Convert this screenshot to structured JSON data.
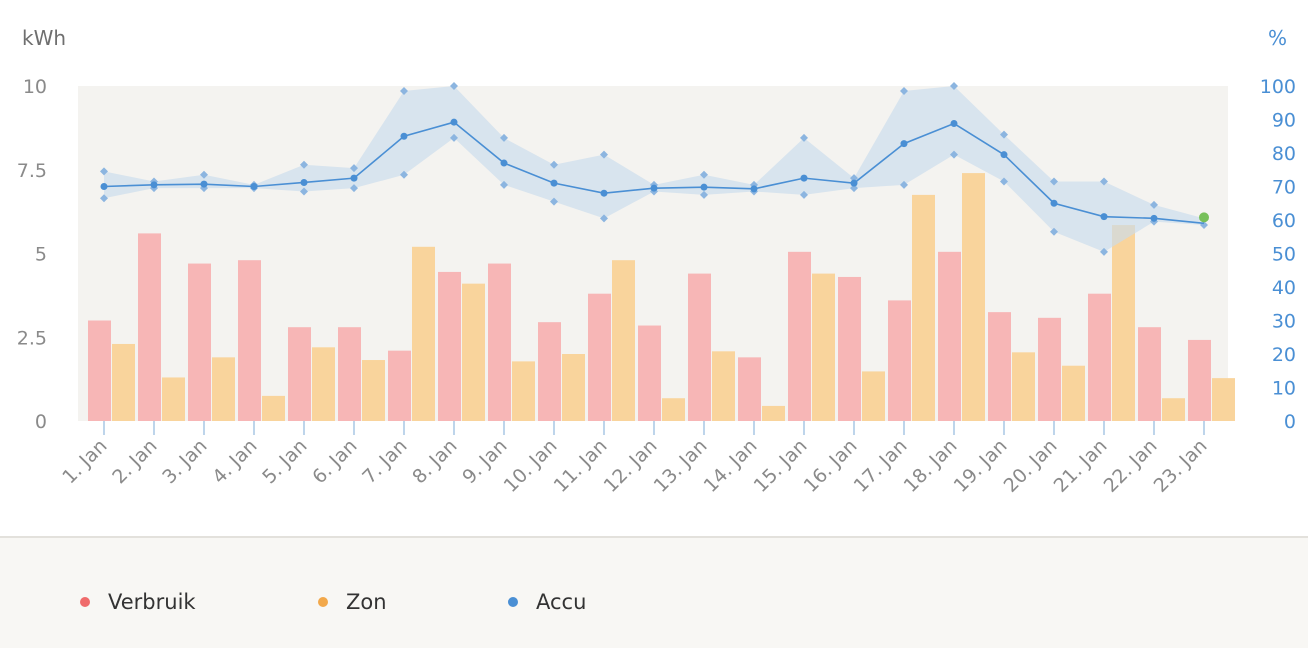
{
  "chart_data": {
    "type": "bar",
    "left_axis_unit": "kWh",
    "right_axis_unit": "%",
    "left_ylim": [
      0,
      10
    ],
    "right_ylim": [
      0,
      100
    ],
    "left_ticks": [
      "0",
      "2.5",
      "5",
      "7.5",
      "10"
    ],
    "left_tick_values": [
      0,
      2.5,
      5,
      7.5,
      10
    ],
    "right_ticks": [
      "0",
      "10",
      "20",
      "30",
      "40",
      "50",
      "60",
      "70",
      "80",
      "90",
      "100"
    ],
    "right_tick_values": [
      0,
      10,
      20,
      30,
      40,
      50,
      60,
      70,
      80,
      90,
      100
    ],
    "categories": [
      "1. Jan",
      "2. Jan",
      "3. Jan",
      "4. Jan",
      "5. Jan",
      "6. Jan",
      "7. Jan",
      "8. Jan",
      "9. Jan",
      "10. Jan",
      "11. Jan",
      "12. Jan",
      "13. Jan",
      "14. Jan",
      "15. Jan",
      "16. Jan",
      "17. Jan",
      "18. Jan",
      "19. Jan",
      "20. Jan",
      "21. Jan",
      "22. Jan",
      "23. Jan"
    ],
    "series": [
      {
        "name": "Verbruik",
        "kind": "bar",
        "axis": "left",
        "color": "#f7b6b6",
        "values": [
          3.0,
          5.6,
          4.7,
          4.8,
          2.8,
          2.8,
          2.1,
          4.45,
          4.7,
          2.95,
          3.8,
          2.85,
          4.4,
          1.9,
          5.05,
          4.3,
          3.6,
          5.05,
          3.25,
          3.08,
          3.8,
          2.8,
          2.42
        ]
      },
      {
        "name": "Zon",
        "kind": "bar",
        "axis": "left",
        "color": "#f9d49c",
        "values": [
          2.3,
          1.3,
          1.9,
          0.75,
          2.2,
          1.82,
          5.2,
          4.1,
          1.78,
          2.0,
          4.8,
          0.68,
          2.08,
          0.45,
          4.4,
          1.48,
          6.75,
          7.4,
          2.05,
          1.65,
          5.85,
          0.68,
          1.28
        ]
      },
      {
        "name": "Accu",
        "kind": "line",
        "axis": "right",
        "color": "#4a8fd4",
        "band_color": "#c9dbed",
        "values": [
          70,
          70.5,
          70.7,
          70,
          71.2,
          72.5,
          85,
          89.2,
          77,
          71,
          68,
          69.5,
          69.8,
          69.3,
          72.5,
          71,
          82.8,
          88.8,
          79.5,
          65,
          61,
          60.5,
          59
        ],
        "max": [
          74.5,
          71.5,
          73.5,
          70.5,
          76.5,
          75.5,
          98.5,
          100,
          84.5,
          76.5,
          79.5,
          70.5,
          73.5,
          70.5,
          84.5,
          72.5,
          98.5,
          100,
          85.5,
          71.5,
          71.5,
          64.5,
          60.5
        ],
        "min": [
          66.5,
          69.5,
          69.5,
          69.5,
          68.5,
          69.5,
          73.5,
          84.5,
          70.5,
          65.5,
          60.5,
          68.5,
          67.5,
          68.5,
          67.5,
          69.5,
          70.5,
          79.5,
          71.5,
          56.5,
          50.5,
          59.5,
          58.5
        ]
      }
    ],
    "current_point_color": "#77c05a"
  },
  "legend": {
    "items": [
      {
        "label": "Verbruik",
        "color": "#ef6b6b"
      },
      {
        "label": "Zon",
        "color": "#f2a84a"
      },
      {
        "label": "Accu",
        "color": "#4a8fd4"
      }
    ]
  }
}
